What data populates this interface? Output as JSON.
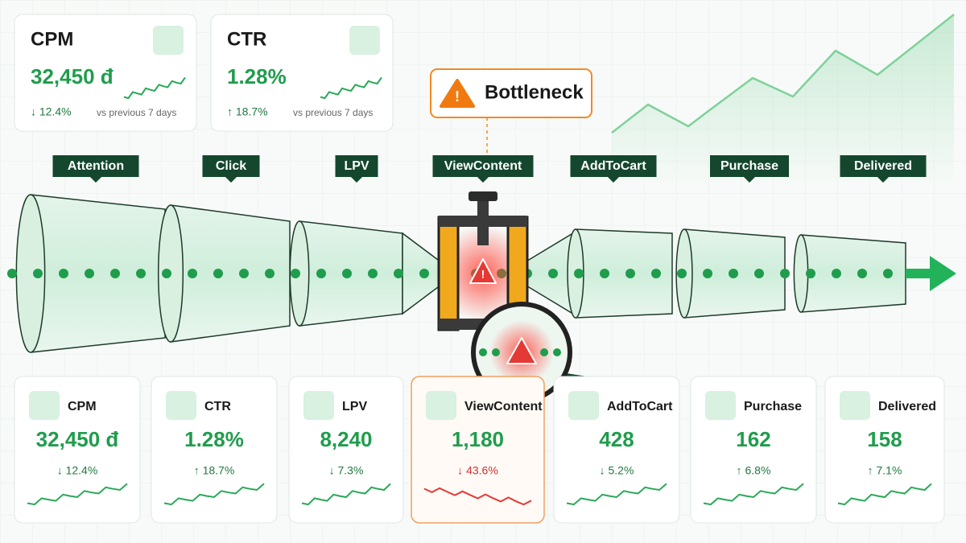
{
  "summary_cards": [
    {
      "title": "CPM",
      "value": "32,450 đ",
      "change": "↓ 12.4%",
      "comparison": "vs previous 7 days"
    },
    {
      "title": "CTR",
      "value": "1.28%",
      "change": "↑ 18.7%",
      "comparison": "vs previous 7 days"
    }
  ],
  "callout": {
    "label": "Bottleneck"
  },
  "stages": [
    "Attention",
    "Click",
    "LPV",
    "ViewContent",
    "AddToCart",
    "Purchase",
    "Delivered"
  ],
  "metric_cards": [
    {
      "label": "CPM",
      "value": "32,450 đ",
      "change": "↓ 12.4%"
    },
    {
      "label": "CTR",
      "value": "1.28%",
      "change": "↑ 18.7%"
    },
    {
      "label": "LPV",
      "value": "8,240",
      "change": "↓ 7.3%"
    },
    {
      "label": "ViewContent",
      "value": "1,180",
      "change": "↓ 43.6%"
    },
    {
      "label": "AddToCart",
      "value": "428",
      "change": "↓ 5.2%"
    },
    {
      "label": "Purchase",
      "value": "162",
      "change": "↑ 6.8%"
    },
    {
      "label": "Delivered",
      "value": "158",
      "change": "↑ 7.1%"
    }
  ]
}
